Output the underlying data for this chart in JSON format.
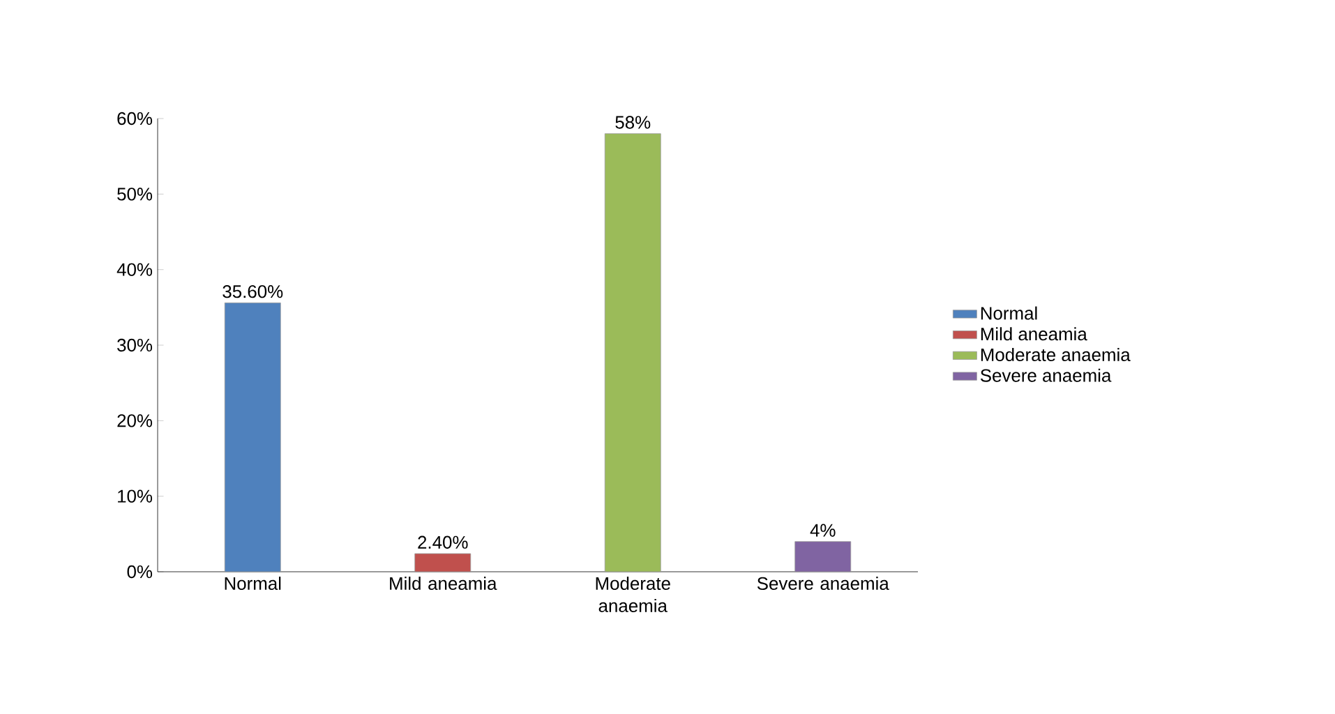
{
  "chart_data": {
    "type": "bar",
    "categories": [
      "Normal",
      "Mild aneamia",
      "Moderate anaemia",
      "Severe anaemia"
    ],
    "series": [
      {
        "name": "Normal",
        "color": "#4f81bd",
        "values": [
          35.6,
          null,
          null,
          null
        ],
        "value_labels": [
          "35.60%",
          null,
          null,
          null
        ]
      },
      {
        "name": "Mild aneamia",
        "color": "#c0504d",
        "values": [
          null,
          2.4,
          null,
          null
        ],
        "value_labels": [
          null,
          "2.40%",
          null,
          null
        ]
      },
      {
        "name": "Moderate anaemia",
        "color": "#9bbb59",
        "values": [
          null,
          null,
          58,
          null
        ],
        "value_labels": [
          null,
          null,
          "58%",
          null
        ]
      },
      {
        "name": "Severe anaemia",
        "color": "#8064a2",
        "values": [
          null,
          null,
          null,
          4
        ],
        "value_labels": [
          null,
          null,
          null,
          "4%"
        ]
      }
    ],
    "ylim": [
      0,
      60
    ],
    "yticks": [
      {
        "value": 0,
        "label": "0%"
      },
      {
        "value": 10,
        "label": "10%"
      },
      {
        "value": 20,
        "label": "20%"
      },
      {
        "value": 30,
        "label": "30%"
      },
      {
        "value": 40,
        "label": "40%"
      },
      {
        "value": 50,
        "label": "50%"
      },
      {
        "value": 60,
        "label": "60%"
      }
    ],
    "legend": "right"
  }
}
